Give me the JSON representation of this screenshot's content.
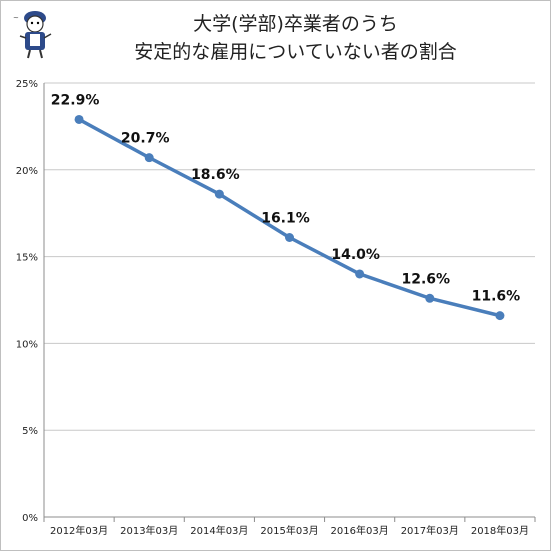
{
  "title_lines": [
    "大学(学部)卒業者のうち",
    "安定的な雇用についていない者の割合"
  ],
  "colors": {
    "line": "#4a7ebb",
    "grid": "#c8c8c8",
    "axis": "#8c8c8c"
  },
  "mascot": {
    "name": "mascot-logo"
  },
  "chart_data": {
    "type": "line",
    "title": "大学(学部)卒業者のうち安定的な雇用についていない者の割合",
    "categories": [
      "2012年03月",
      "2013年03月",
      "2014年03月",
      "2015年03月",
      "2016年03月",
      "2017年03月",
      "2018年03月"
    ],
    "series": [
      {
        "values": [
          22.9,
          20.7,
          18.6,
          16.1,
          14.0,
          12.6,
          11.6
        ],
        "labels": [
          "22.9%",
          "20.7%",
          "18.6%",
          "16.1%",
          "14.0%",
          "12.6%",
          "11.6%"
        ]
      }
    ],
    "y_ticks": [
      0,
      5,
      10,
      15,
      20,
      25
    ],
    "y_tick_labels": [
      "0%",
      "5%",
      "10%",
      "15%",
      "20%",
      "25%"
    ],
    "ylim": [
      0,
      25
    ],
    "grid": true,
    "legend": false
  }
}
